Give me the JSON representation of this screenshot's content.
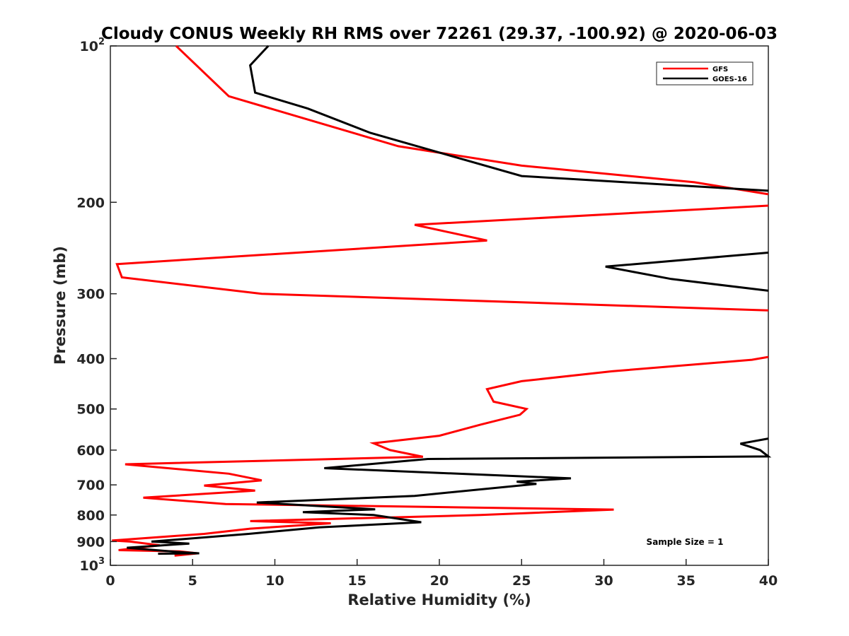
{
  "chart_data": {
    "type": "line",
    "title": "Cloudy CONUS Weekly RH RMS over 72261 (29.37, -100.92) @ 2020-06-03",
    "xlabel": "Relative Humidity (%)",
    "ylabel": "Pressure (mb)",
    "xlim": [
      0,
      40
    ],
    "ylim": [
      100,
      1000
    ],
    "y_scale": "log",
    "y_reversed": true,
    "grid": false,
    "legend_position": "top-right",
    "x_ticks": [
      "0",
      "5",
      "10",
      "15",
      "20",
      "25",
      "30",
      "35",
      "40"
    ],
    "y_ticks": [
      {
        "value": 100,
        "base": "10",
        "exp": "2"
      },
      {
        "value": 200,
        "label": "200"
      },
      {
        "value": 300,
        "label": "300"
      },
      {
        "value": 400,
        "label": "400"
      },
      {
        "value": 500,
        "label": "500"
      },
      {
        "value": 600,
        "label": "600"
      },
      {
        "value": 700,
        "label": "700"
      },
      {
        "value": 800,
        "label": "800"
      },
      {
        "value": 900,
        "label": "900"
      },
      {
        "value": 1000,
        "base": "10",
        "exp": "3"
      }
    ],
    "series": [
      {
        "name": "GFS",
        "color": "#ff0000",
        "points": [
          [
            4.0,
            100
          ],
          [
            7.2,
            125
          ],
          [
            17.5,
            156
          ],
          [
            25.0,
            170
          ],
          [
            35.5,
            183
          ],
          [
            40,
            193
          ],
          [
            null,
            null
          ],
          [
            40,
            203
          ],
          [
            18.5,
            221
          ],
          [
            22.9,
            237
          ],
          [
            0.4,
            263
          ],
          [
            0.7,
            279
          ],
          [
            9.2,
            300
          ],
          [
            40,
            323
          ],
          [
            null,
            null
          ],
          [
            40,
            397
          ],
          [
            39.0,
            402
          ],
          [
            30.5,
            423
          ],
          [
            25.0,
            442
          ],
          [
            22.9,
            458
          ],
          [
            23.3,
            484
          ],
          [
            25.3,
            500
          ],
          [
            24.9,
            513
          ],
          [
            22.5,
            536
          ],
          [
            20.0,
            563
          ],
          [
            16.0,
            582
          ],
          [
            17.0,
            600
          ],
          [
            19.0,
            618
          ],
          [
            0.9,
            639
          ],
          [
            7.2,
            666
          ],
          [
            9.2,
            686
          ],
          [
            5.7,
            702
          ],
          [
            8.8,
            718
          ],
          [
            2.0,
            741
          ],
          [
            7.0,
            762
          ],
          [
            30.6,
            781
          ],
          [
            22.5,
            800
          ],
          [
            8.5,
            822
          ],
          [
            13.4,
            830
          ],
          [
            8.5,
            850
          ],
          [
            5.7,
            870
          ],
          [
            0.1,
            896
          ],
          [
            1.2,
            900
          ],
          [
            3.0,
            915
          ],
          [
            0.5,
            935
          ],
          [
            4.2,
            940
          ],
          [
            5.3,
            948
          ],
          [
            3.9,
            958
          ]
        ]
      },
      {
        "name": "GOES-16",
        "color": "#000000",
        "points": [
          [
            9.6,
            100
          ],
          [
            8.5,
            109
          ],
          [
            8.8,
            123
          ],
          [
            12.0,
            132
          ],
          [
            15.8,
            147
          ],
          [
            25.0,
            178
          ],
          [
            40,
            190
          ],
          [
            null,
            null
          ],
          [
            40,
            250
          ],
          [
            30.1,
            266
          ],
          [
            34.1,
            281
          ],
          [
            40,
            296
          ],
          [
            null,
            null
          ],
          [
            40,
            570
          ],
          [
            38.3,
            583
          ],
          [
            39.5,
            600
          ],
          [
            40,
            617
          ],
          [
            19.3,
            624
          ],
          [
            13.0,
            650
          ],
          [
            28.0,
            680
          ],
          [
            24.7,
            690
          ],
          [
            25.9,
            697
          ],
          [
            18.5,
            735
          ],
          [
            8.9,
            757
          ],
          [
            16.1,
            780
          ],
          [
            11.7,
            790
          ],
          [
            16.0,
            800
          ],
          [
            18.9,
            826
          ],
          [
            12.7,
            845
          ],
          [
            8.4,
            870
          ],
          [
            2.5,
            900
          ],
          [
            4.8,
            908
          ],
          [
            1.0,
            925
          ],
          [
            4.0,
            942
          ],
          [
            5.4,
            948
          ],
          [
            2.9,
            950
          ]
        ]
      }
    ],
    "annotation": "Sample Size = 1"
  }
}
